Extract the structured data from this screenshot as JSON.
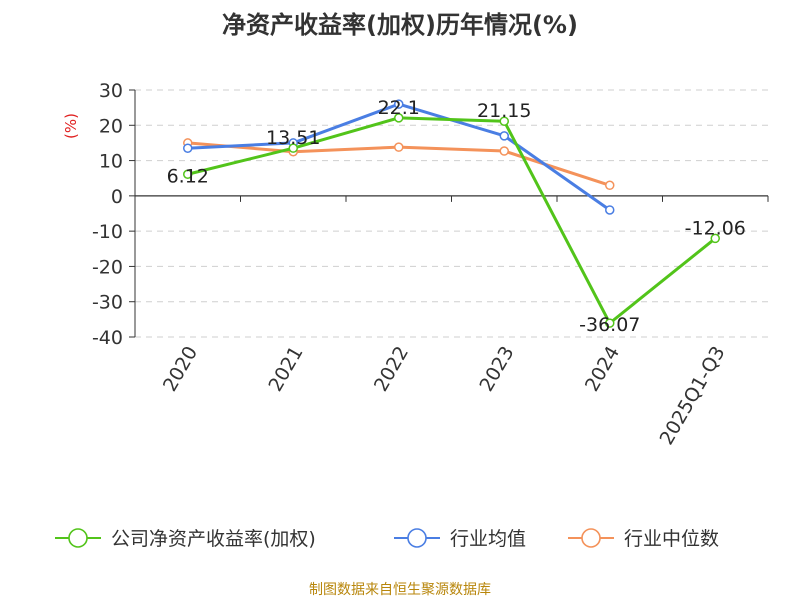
{
  "chart_data": {
    "type": "line",
    "title": "净资产收益率(加权)历年情况(%)",
    "ylabel": "(%)",
    "categories": [
      "2020",
      "2021",
      "2022",
      "2023",
      "2024",
      "2025Q1-Q3"
    ],
    "ylim": [
      -40,
      30
    ],
    "yticks": [
      30,
      20,
      10,
      0,
      -10,
      -20,
      -30,
      -40
    ],
    "grid": true,
    "legend_position": "bottom",
    "series": [
      {
        "name": "公司净资产收益率(加权)",
        "color": "#52c41a",
        "values": [
          6.12,
          13.51,
          22.1,
          21.15,
          -36.07,
          -12.06
        ],
        "labels": [
          "6.12",
          "13.51",
          "22.1",
          "21.15",
          "-36.07",
          "-12.06"
        ]
      },
      {
        "name": "行业均值",
        "color": "#4a7ee3",
        "values": [
          13.5,
          15.0,
          26.0,
          17.0,
          -4.0,
          null
        ]
      },
      {
        "name": "行业中位数",
        "color": "#f4925a",
        "values": [
          15.0,
          12.5,
          13.8,
          12.7,
          3.0,
          null
        ]
      }
    ],
    "source": "制图数据来自恒生聚源数据库",
    "unit_color": "#e02020",
    "source_color": "#b8860b"
  }
}
